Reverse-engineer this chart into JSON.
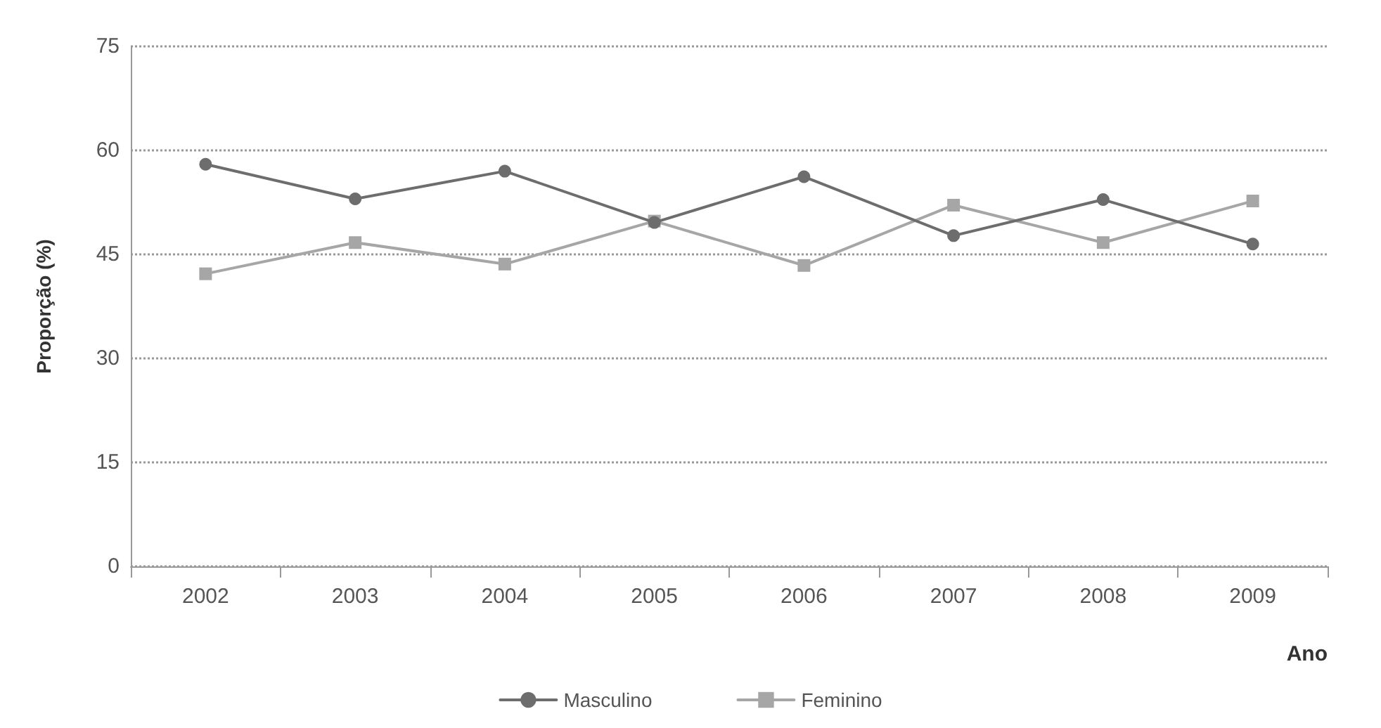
{
  "chart_data": {
    "type": "line",
    "xlabel": "Ano",
    "ylabel": "Proporção (%)",
    "categories": [
      "2002",
      "2003",
      "2004",
      "2005",
      "2006",
      "2007",
      "2008",
      "2009"
    ],
    "series": [
      {
        "name": "Masculino",
        "color": "#6d6d6d",
        "marker": "circle",
        "values": [
          58,
          53,
          57,
          49.6,
          56.2,
          47.7,
          52.9,
          46.5
        ]
      },
      {
        "name": "Feminino",
        "color": "#a6a6a6",
        "marker": "square",
        "values": [
          42.2,
          46.7,
          43.6,
          49.8,
          43.4,
          52.1,
          46.7,
          52.7
        ]
      }
    ],
    "ylim": [
      0,
      75
    ],
    "yticks": [
      0,
      15,
      30,
      45,
      60,
      75
    ],
    "grid": "y",
    "legend": "bottom",
    "line_style": "solid"
  }
}
